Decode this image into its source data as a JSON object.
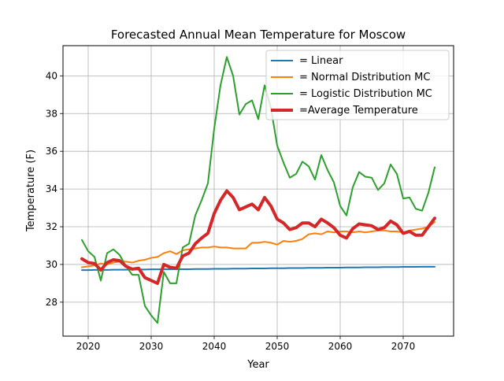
{
  "chart_data": {
    "type": "line",
    "title": "Forecasted Annual Mean Temperature for Moscow",
    "xlabel": "Year",
    "ylabel": "Temperature (F)",
    "xlim": [
      2016,
      2078
    ],
    "ylim": [
      26.2,
      41.6
    ],
    "xticks": [
      2020,
      2030,
      2040,
      2050,
      2060,
      2070
    ],
    "yticks": [
      28,
      30,
      32,
      34,
      36,
      38,
      40
    ],
    "grid": true,
    "legend_position": "top-right",
    "x": [
      2019,
      2020,
      2021,
      2022,
      2023,
      2024,
      2025,
      2026,
      2027,
      2028,
      2029,
      2030,
      2031,
      2032,
      2033,
      2034,
      2035,
      2036,
      2037,
      2038,
      2039,
      2040,
      2041,
      2042,
      2043,
      2044,
      2045,
      2046,
      2047,
      2048,
      2049,
      2050,
      2051,
      2052,
      2053,
      2054,
      2055,
      2056,
      2057,
      2058,
      2059,
      2060,
      2061,
      2062,
      2063,
      2064,
      2065,
      2066,
      2067,
      2068,
      2069,
      2070,
      2071,
      2072,
      2073,
      2074,
      2075
    ],
    "series": [
      {
        "name": "= Linear",
        "color": "#1f77b4",
        "width": 2,
        "values": [
          29.7,
          29.7,
          29.71,
          29.71,
          29.71,
          29.72,
          29.72,
          29.72,
          29.73,
          29.73,
          29.73,
          29.74,
          29.74,
          29.74,
          29.75,
          29.75,
          29.75,
          29.75,
          29.76,
          29.76,
          29.76,
          29.77,
          29.77,
          29.77,
          29.78,
          29.78,
          29.78,
          29.79,
          29.79,
          29.79,
          29.8,
          29.8,
          29.8,
          29.81,
          29.81,
          29.81,
          29.82,
          29.82,
          29.82,
          29.83,
          29.83,
          29.83,
          29.84,
          29.84,
          29.84,
          29.85,
          29.85,
          29.85,
          29.86,
          29.86,
          29.86,
          29.87,
          29.87,
          29.87,
          29.88,
          29.88,
          29.88
        ]
      },
      {
        "name": "= Normal Distribution MC",
        "color": "#ff7f0e",
        "width": 2,
        "values": [
          29.85,
          29.9,
          29.95,
          30.05,
          30.0,
          30.1,
          30.15,
          30.15,
          30.1,
          30.2,
          30.25,
          30.35,
          30.4,
          30.6,
          30.7,
          30.55,
          30.75,
          30.8,
          30.85,
          30.9,
          30.9,
          30.95,
          30.9,
          30.9,
          30.85,
          30.85,
          30.85,
          31.15,
          31.15,
          31.2,
          31.15,
          31.05,
          31.25,
          31.2,
          31.25,
          31.35,
          31.6,
          31.65,
          31.6,
          31.75,
          31.7,
          31.75,
          31.75,
          31.7,
          31.75,
          31.7,
          31.75,
          31.8,
          31.8,
          31.75,
          31.75,
          31.7,
          31.8,
          31.85,
          31.9,
          32.0,
          32.25
        ]
      },
      {
        "name": "= Logistic Distribution MC",
        "color": "#2ca02c",
        "width": 2,
        "values": [
          31.3,
          30.7,
          30.4,
          29.15,
          30.6,
          30.8,
          30.5,
          29.9,
          29.45,
          29.45,
          27.8,
          27.3,
          26.9,
          29.6,
          29.0,
          29.0,
          30.9,
          31.1,
          32.6,
          33.4,
          34.3,
          37.2,
          39.5,
          41.0,
          40.0,
          37.95,
          38.5,
          38.7,
          37.7,
          39.5,
          38.3,
          36.3,
          35.4,
          34.6,
          34.8,
          35.45,
          35.2,
          34.5,
          35.8,
          35.0,
          34.35,
          33.1,
          32.6,
          34.1,
          34.9,
          34.65,
          34.6,
          33.95,
          34.3,
          35.3,
          34.8,
          33.5,
          33.55,
          32.95,
          32.85,
          33.8,
          35.15
        ]
      },
      {
        "name": "=Average Temperature",
        "color": "#d62728",
        "width": 4,
        "values": [
          30.3,
          30.1,
          30.05,
          29.7,
          30.1,
          30.25,
          30.2,
          29.9,
          29.75,
          29.8,
          29.3,
          29.15,
          29.0,
          30.0,
          29.85,
          29.8,
          30.45,
          30.6,
          31.1,
          31.4,
          31.65,
          32.7,
          33.4,
          33.9,
          33.55,
          32.9,
          33.05,
          33.2,
          32.9,
          33.55,
          33.1,
          32.4,
          32.2,
          31.85,
          31.95,
          32.2,
          32.2,
          32.0,
          32.4,
          32.2,
          31.95,
          31.55,
          31.4,
          31.9,
          32.15,
          32.1,
          32.05,
          31.85,
          31.95,
          32.3,
          32.1,
          31.65,
          31.75,
          31.55,
          31.55,
          32.0,
          32.45
        ]
      }
    ]
  }
}
